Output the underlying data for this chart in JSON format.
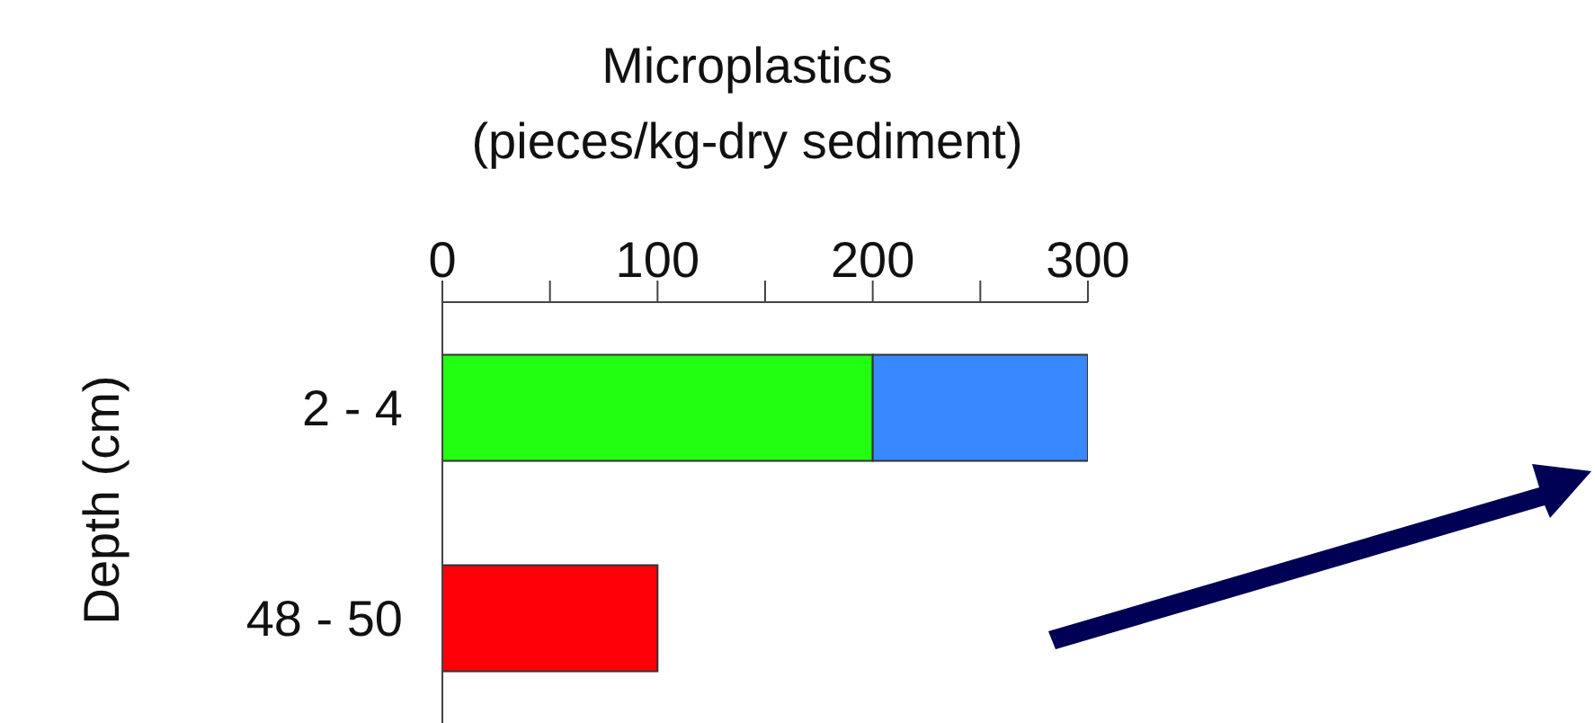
{
  "chart_data": {
    "type": "bar",
    "orientation": "horizontal",
    "stacked": true,
    "xlabel": "Microplastics\n(pieces/kg-dry sediment)",
    "ylabel": "Depth (cm)",
    "categories": [
      "2 - 4",
      "48 - 50"
    ],
    "series": [
      {
        "color": "#22ff11",
        "values": [
          200,
          null
        ]
      },
      {
        "color": "#3888ff",
        "values": [
          100,
          null
        ]
      },
      {
        "color": "#ff0008",
        "values": [
          null,
          100
        ]
      }
    ],
    "xlim": [
      0,
      300
    ],
    "xticks": [
      0,
      {
        "value": 50,
        "label": null
      },
      100,
      {
        "value": 150,
        "label": null
      },
      200,
      {
        "value": 250,
        "label": null
      },
      300
    ]
  }
}
